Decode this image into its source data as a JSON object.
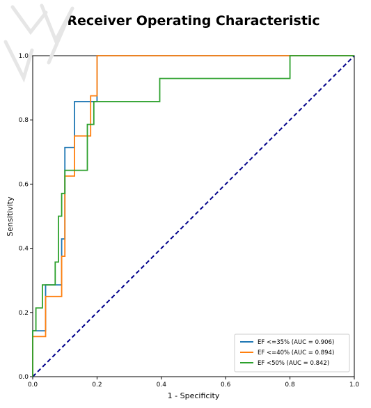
{
  "chart_data": {
    "type": "line",
    "title": "Receiver Operating Characteristic",
    "xlabel": "1 - Specificity",
    "ylabel": "Sensitivity",
    "xlim": [
      0.0,
      1.0
    ],
    "ylim": [
      0.0,
      1.0
    ],
    "xticks": [
      "0.0",
      "0.2",
      "0.4",
      "0.6",
      "0.8",
      "1.0"
    ],
    "yticks": [
      "0.0",
      "0.2",
      "0.4",
      "0.6",
      "0.8",
      "1.0"
    ],
    "grid": false,
    "legend_position": "bottom-right",
    "series": [
      {
        "name": "EF <=35% (AUC = 0.906)",
        "color": "#1f77b4",
        "x": [
          0.0,
          0.0,
          0.04,
          0.04,
          0.09,
          0.09,
          0.1,
          0.1,
          0.13,
          0.13,
          0.2,
          0.2,
          1.0
        ],
        "y": [
          0.0,
          0.143,
          0.143,
          0.286,
          0.286,
          0.429,
          0.429,
          0.714,
          0.714,
          0.857,
          0.857,
          1.0,
          1.0
        ]
      },
      {
        "name": "EF <=40% (AUC = 0.894)",
        "color": "#ff7f0e",
        "x": [
          0.0,
          0.0,
          0.04,
          0.04,
          0.09,
          0.09,
          0.1,
          0.1,
          0.13,
          0.13,
          0.18,
          0.18,
          0.2,
          0.2,
          1.0
        ],
        "y": [
          0.0,
          0.125,
          0.125,
          0.25,
          0.25,
          0.375,
          0.375,
          0.625,
          0.625,
          0.75,
          0.75,
          0.875,
          0.875,
          1.0,
          1.0
        ]
      },
      {
        "name": "EF <50% (AUC = 0.842)",
        "color": "#2ca02c",
        "x": [
          0.0,
          0.0,
          0.01,
          0.01,
          0.03,
          0.03,
          0.07,
          0.07,
          0.08,
          0.08,
          0.09,
          0.09,
          0.1,
          0.1,
          0.17,
          0.17,
          0.19,
          0.19,
          0.395,
          0.395,
          0.8,
          0.8,
          1.0
        ],
        "y": [
          0.0,
          0.143,
          0.143,
          0.214,
          0.214,
          0.286,
          0.286,
          0.357,
          0.357,
          0.5,
          0.5,
          0.571,
          0.571,
          0.643,
          0.643,
          0.786,
          0.786,
          0.857,
          0.857,
          0.929,
          0.929,
          1.0,
          1.0
        ]
      }
    ],
    "reference_line": {
      "x": [
        0.0,
        1.0
      ],
      "y": [
        0.0,
        1.0
      ],
      "color": "#00008b",
      "style": "dashed"
    }
  }
}
